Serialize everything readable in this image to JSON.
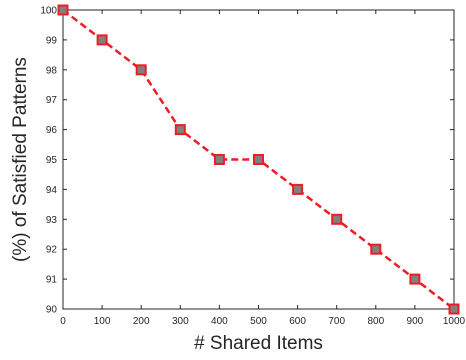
{
  "chart_data": {
    "type": "line",
    "title": "",
    "xlabel": "# Shared Items",
    "ylabel": "(%) of Satisfied Patterns",
    "xlim": [
      0,
      1000
    ],
    "ylim": [
      90,
      100
    ],
    "xticks": [
      0,
      100,
      200,
      300,
      400,
      500,
      600,
      700,
      800,
      900,
      1000
    ],
    "yticks": [
      90,
      91,
      92,
      93,
      94,
      95,
      96,
      97,
      98,
      99,
      100
    ],
    "grid": false,
    "legend": "none",
    "series": [
      {
        "x": [
          0,
          100,
          200,
          300,
          400,
          500,
          600,
          700,
          800,
          900,
          1000
        ],
        "y": [
          100,
          99,
          98,
          96,
          95,
          95,
          94,
          93,
          92,
          91,
          90
        ],
        "line_color": "#ee1c25",
        "line_style": "dashed",
        "marker": "square",
        "marker_fill": "#808080",
        "marker_edge": "#ee1c25"
      }
    ]
  }
}
